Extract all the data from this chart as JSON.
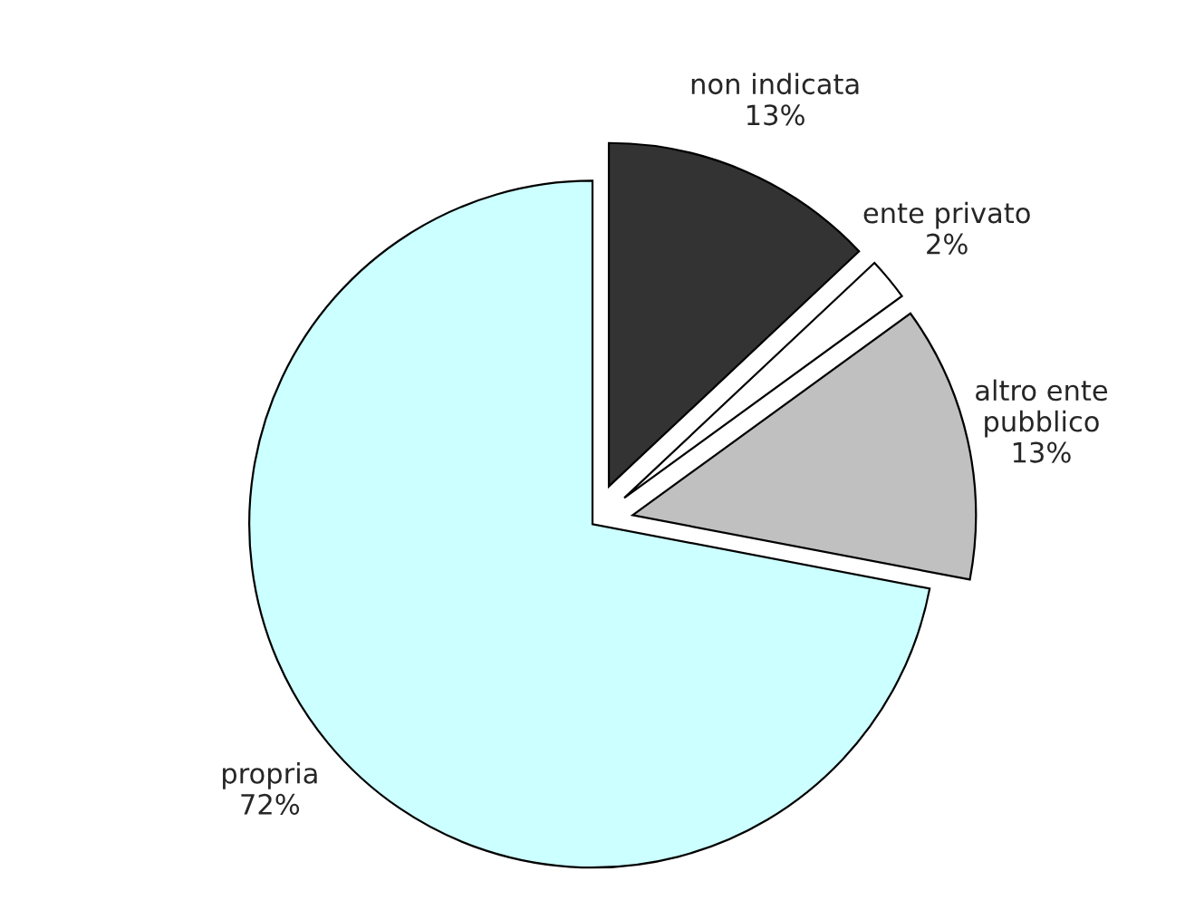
{
  "chart_data": {
    "type": "pie",
    "categories": [
      "non indicata",
      "ente privato",
      "altro ente pubblico",
      "propria"
    ],
    "values": [
      13,
      2,
      13,
      72
    ],
    "value_labels": [
      "13%",
      "2%",
      "13%",
      "72%"
    ],
    "colors": [
      "#333333",
      "#ffffff",
      "#c0c0c0",
      "#ccffff"
    ],
    "legend": false
  }
}
